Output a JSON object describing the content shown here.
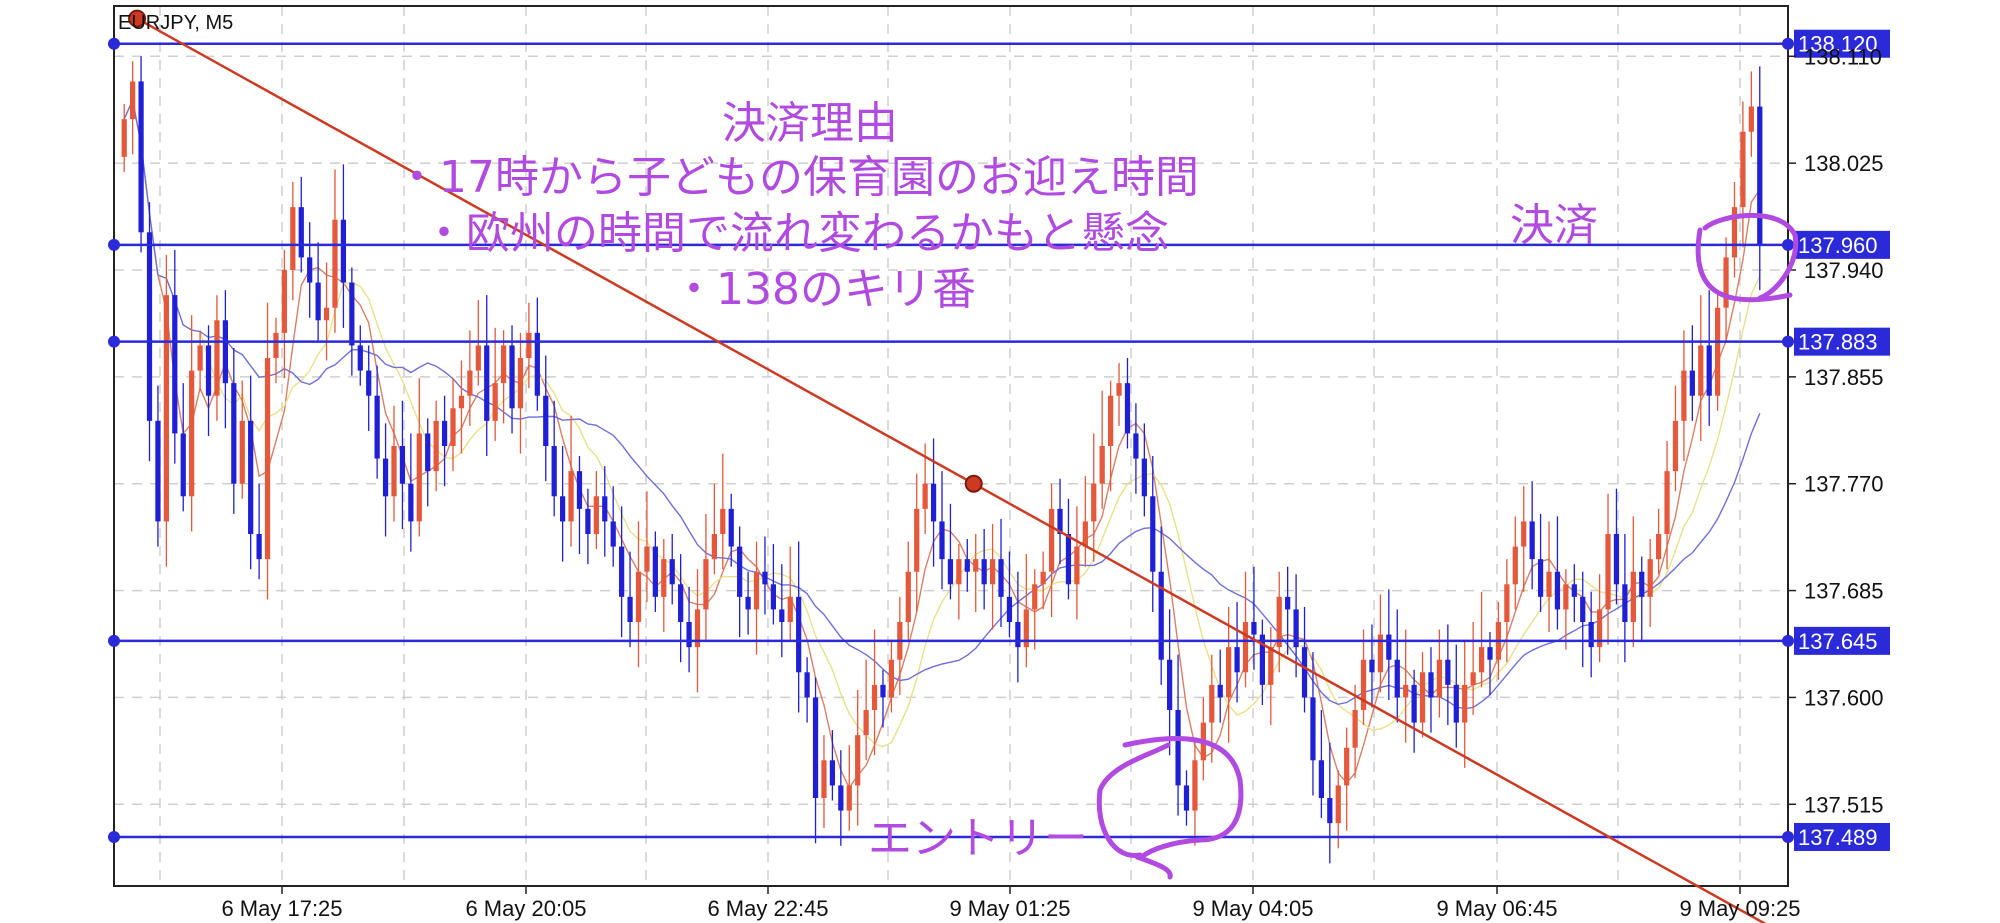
{
  "chart_data": {
    "type": "candlestick",
    "symbol_label": "EURJPY, M5",
    "x_labels": [
      "6 May 17:25",
      "6 May 20:05",
      "6 May 22:45",
      "9 May 01:25",
      "9 May 04:05",
      "9 May 06:45",
      "9 May 09:25"
    ],
    "y_ticks": [
      "138.110",
      "138.025",
      "137.940",
      "137.855",
      "137.770",
      "137.685",
      "137.600",
      "137.515"
    ],
    "ylim": [
      137.45,
      138.15
    ],
    "grid": true,
    "horizontal_levels": [
      "138.120",
      "137.960",
      "137.883",
      "137.645",
      "137.489"
    ],
    "trendline": {
      "start": {
        "bar": 2,
        "price": 138.14
      },
      "end": {
        "bar": 200,
        "price": 137.4
      }
    },
    "annotations": {
      "exit_reason_title": "決済理由",
      "exit_reason_1": "・17時から子どもの保育園のお迎え時間",
      "exit_reason_2": "・欧州の時間で流れ変わるかもと懸念",
      "exit_reason_3": "・138のキリ番",
      "exit_label": "決済",
      "entry_label": "エントリー"
    },
    "closes": [
      138.06,
      138.09,
      137.97,
      137.82,
      137.74,
      137.92,
      137.81,
      137.76,
      137.86,
      137.88,
      137.84,
      137.9,
      137.85,
      137.77,
      137.82,
      137.73,
      137.71,
      137.87,
      137.89,
      137.94,
      137.99,
      137.95,
      137.93,
      137.9,
      137.91,
      137.98,
      137.93,
      137.88,
      137.86,
      137.84,
      137.79,
      137.76,
      137.8,
      137.77,
      137.74,
      137.81,
      137.78,
      137.82,
      137.8,
      137.83,
      137.84,
      137.86,
      137.88,
      137.82,
      137.85,
      137.88,
      137.83,
      137.87,
      137.89,
      137.84,
      137.8,
      137.76,
      137.74,
      137.78,
      137.75,
      137.73,
      137.76,
      137.74,
      137.72,
      137.68,
      137.66,
      137.7,
      137.72,
      137.68,
      137.71,
      137.69,
      137.66,
      137.64,
      137.67,
      137.71,
      137.73,
      137.75,
      137.72,
      137.68,
      137.67,
      137.7,
      137.69,
      137.67,
      137.66,
      137.68,
      137.62,
      137.6,
      137.52,
      137.55,
      137.53,
      137.51,
      137.53,
      137.57,
      137.59,
      137.61,
      137.6,
      137.63,
      137.66,
      137.7,
      137.75,
      137.77,
      137.74,
      137.71,
      137.69,
      137.71,
      137.7,
      137.71,
      137.69,
      137.71,
      137.68,
      137.66,
      137.64,
      137.67,
      137.69,
      137.7,
      137.75,
      137.73,
      137.69,
      137.72,
      137.74,
      137.77,
      137.8,
      137.84,
      137.85,
      137.81,
      137.79,
      137.76,
      137.7,
      137.63,
      137.59,
      137.53,
      137.51,
      137.55,
      137.58,
      137.61,
      137.6,
      137.64,
      137.62,
      137.66,
      137.65,
      137.61,
      137.64,
      137.68,
      137.67,
      137.64,
      137.6,
      137.55,
      137.52,
      137.5,
      137.53,
      137.56,
      137.59,
      137.63,
      137.62,
      137.65,
      137.63,
      137.6,
      137.61,
      137.58,
      137.62,
      137.6,
      137.63,
      137.61,
      137.58,
      137.61,
      137.62,
      137.64,
      137.63,
      137.66,
      137.69,
      137.72,
      137.74,
      137.71,
      137.68,
      137.7,
      137.67,
      137.69,
      137.68,
      137.66,
      137.64,
      137.67,
      137.73,
      137.69,
      137.66,
      137.7,
      137.68,
      137.71,
      137.73,
      137.78,
      137.82,
      137.86,
      137.84,
      137.88,
      137.84,
      137.91,
      137.95,
      137.99,
      138.05,
      138.07,
      137.96
    ]
  }
}
